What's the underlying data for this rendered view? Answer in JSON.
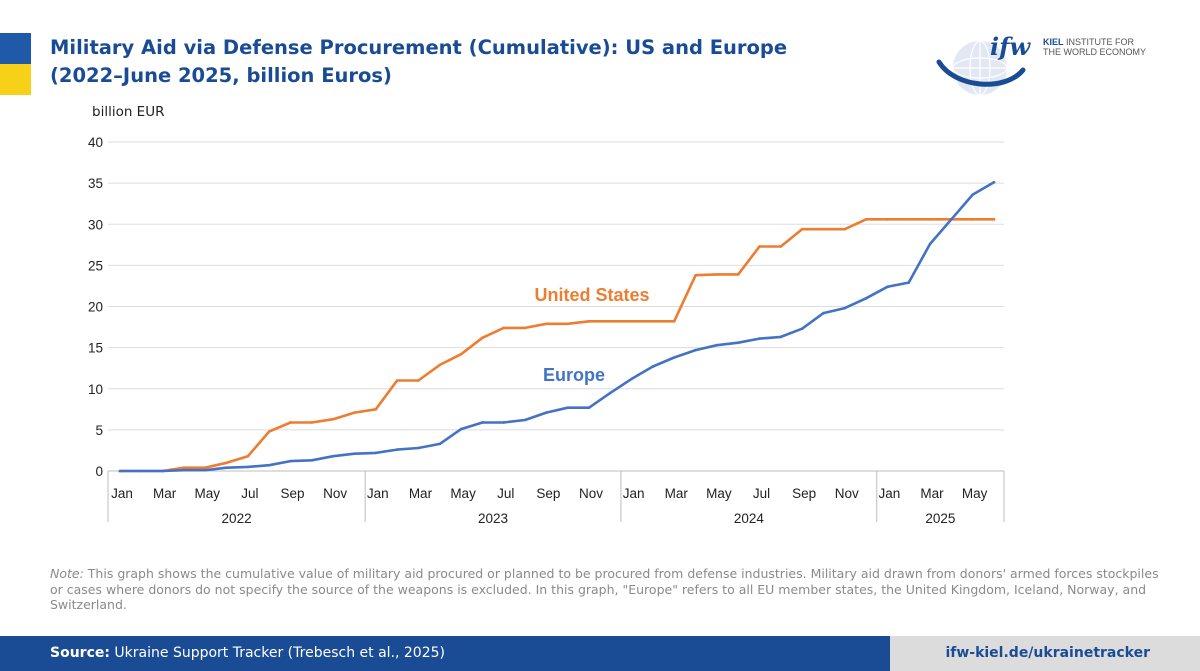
{
  "header": {
    "title_line1": "Military Aid via Defense Procurement (Cumulative): US and Europe",
    "title_line2": "(2022–June 2025, billion Euros)"
  },
  "logo": {
    "mark": "ifw",
    "line1_bold": "KIEL",
    "line1_rest": "INSTITUTE FOR",
    "line2": "THE WORLD ECONOMY"
  },
  "note": {
    "prefix": "Note:",
    "text": "This graph shows the cumulative value of military aid procured or planned to be procured from defense industries. Military aid drawn from donors' armed forces stockpiles or cases where donors do not specify the source of the weapons is excluded. In this graph, \"Europe\" refers to all EU member states, the United Kingdom, Iceland, Norway, and Switzerland."
  },
  "footer": {
    "source_label": "Source:",
    "source_text": "Ukraine Support Tracker (Trebesch et al., 2025)",
    "url": "ifw-kiel.de/ukrainetracker"
  },
  "colors": {
    "brand_blue": "#1a4c96",
    "us": "#ed7d31",
    "europe": "#4472c4",
    "flag_yellow": "#f7d117"
  },
  "chart_data": {
    "type": "line",
    "ylabel": "billion EUR",
    "xlabel": "",
    "ylim": [
      0,
      40
    ],
    "yticks": [
      0,
      5,
      10,
      15,
      20,
      25,
      30,
      35,
      40
    ],
    "grid": true,
    "x": [
      "2022-01",
      "2022-02",
      "2022-03",
      "2022-04",
      "2022-05",
      "2022-06",
      "2022-07",
      "2022-08",
      "2022-09",
      "2022-10",
      "2022-11",
      "2022-12",
      "2023-01",
      "2023-02",
      "2023-03",
      "2023-04",
      "2023-05",
      "2023-06",
      "2023-07",
      "2023-08",
      "2023-09",
      "2023-10",
      "2023-11",
      "2023-12",
      "2024-01",
      "2024-02",
      "2024-03",
      "2024-04",
      "2024-05",
      "2024-06",
      "2024-07",
      "2024-08",
      "2024-09",
      "2024-10",
      "2024-11",
      "2024-12",
      "2025-01",
      "2025-02",
      "2025-03",
      "2025-04",
      "2025-05",
      "2025-06"
    ],
    "month_tick_labels": [
      {
        "index": 0,
        "label": "Jan"
      },
      {
        "index": 2,
        "label": "Mar"
      },
      {
        "index": 4,
        "label": "May"
      },
      {
        "index": 6,
        "label": "Jul"
      },
      {
        "index": 8,
        "label": "Sep"
      },
      {
        "index": 10,
        "label": "Nov"
      },
      {
        "index": 12,
        "label": "Jan"
      },
      {
        "index": 14,
        "label": "Mar"
      },
      {
        "index": 16,
        "label": "May"
      },
      {
        "index": 18,
        "label": "Jul"
      },
      {
        "index": 20,
        "label": "Sep"
      },
      {
        "index": 22,
        "label": "Nov"
      },
      {
        "index": 24,
        "label": "Jan"
      },
      {
        "index": 26,
        "label": "Mar"
      },
      {
        "index": 28,
        "label": "May"
      },
      {
        "index": 30,
        "label": "Jul"
      },
      {
        "index": 32,
        "label": "Sep"
      },
      {
        "index": 34,
        "label": "Nov"
      },
      {
        "index": 36,
        "label": "Jan"
      },
      {
        "index": 38,
        "label": "Mar"
      },
      {
        "index": 40,
        "label": "May"
      }
    ],
    "year_groups": [
      {
        "label": "2022",
        "start": 0,
        "end": 11
      },
      {
        "label": "2023",
        "start": 12,
        "end": 23
      },
      {
        "label": "2024",
        "start": 24,
        "end": 35
      },
      {
        "label": "2025",
        "start": 36,
        "end": 41
      }
    ],
    "series": [
      {
        "name": "United States",
        "color": "#ed7d31",
        "values": [
          0,
          0,
          0,
          0.4,
          0.4,
          1.0,
          1.8,
          4.8,
          5.9,
          5.9,
          6.3,
          7.1,
          7.5,
          11.0,
          11.0,
          12.9,
          14.2,
          16.2,
          17.4,
          17.4,
          17.9,
          17.9,
          18.2,
          18.2,
          18.2,
          18.2,
          18.2,
          23.8,
          23.9,
          23.9,
          27.3,
          27.3,
          29.4,
          29.4,
          29.4,
          30.6,
          30.6,
          30.6,
          30.6,
          30.6,
          30.6,
          30.6
        ]
      },
      {
        "name": "Europe",
        "color": "#4472c4",
        "values": [
          0,
          0,
          0,
          0.1,
          0.1,
          0.4,
          0.5,
          0.7,
          1.2,
          1.3,
          1.8,
          2.1,
          2.2,
          2.6,
          2.8,
          3.3,
          5.1,
          5.9,
          5.9,
          6.2,
          7.1,
          7.7,
          7.7,
          9.5,
          11.2,
          12.7,
          13.8,
          14.7,
          15.3,
          15.6,
          16.1,
          16.3,
          17.3,
          19.2,
          19.8,
          21.0,
          22.4,
          22.9,
          27.6,
          30.6,
          33.6,
          35.1
        ]
      }
    ],
    "annotations": [
      {
        "text": "United States",
        "series": "United States"
      },
      {
        "text": "Europe",
        "series": "Europe"
      }
    ]
  }
}
